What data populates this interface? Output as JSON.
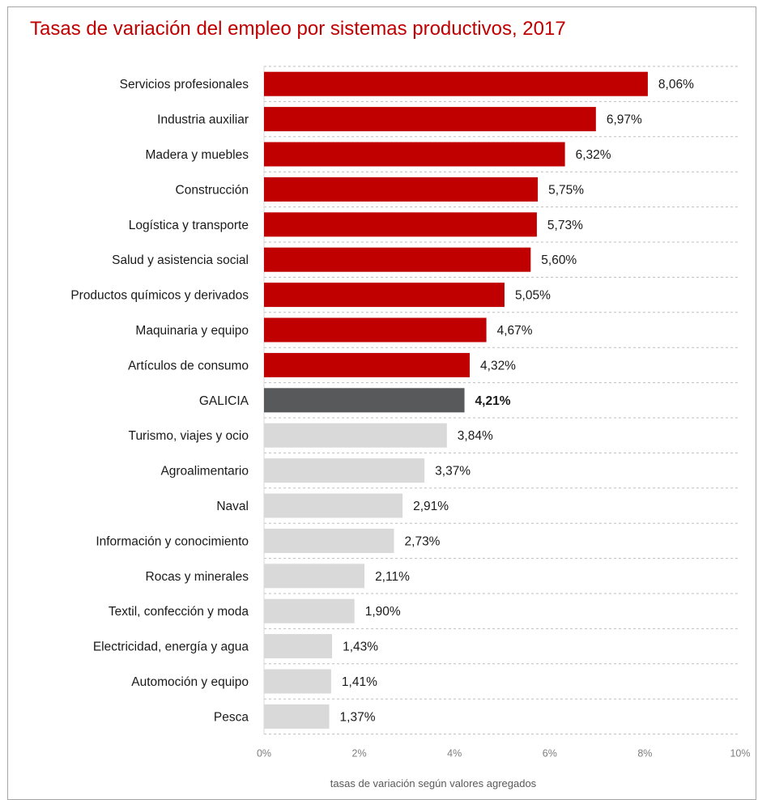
{
  "chart_data": {
    "type": "bar",
    "orientation": "horizontal",
    "title": "Tasas de variación del empleo por sistemas productivos, 2017",
    "xlabel": "tasas de variación según valores agregados",
    "ylabel": "",
    "xlim": [
      0,
      10
    ],
    "x_ticks": [
      "0%",
      "2%",
      "4%",
      "6%",
      "8%",
      "10%"
    ],
    "grid": "horizontal dashed",
    "categories": [
      "Servicios profesionales",
      "Industria auxiliar",
      "Madera y muebles",
      "Construcción",
      "Logística y transporte",
      "Salud y asistencia social",
      "Productos químicos y derivados",
      "Maquinaria y equipo",
      "Artículos de consumo",
      "GALICIA",
      "Turismo, viajes y ocio",
      "Agroalimentario",
      "Naval",
      "Información y conocimiento",
      "Rocas y minerales",
      "Textil, confección y moda",
      "Electricidad, energía y agua",
      "Automoción y equipo",
      "Pesca"
    ],
    "values": [
      8.06,
      6.97,
      6.32,
      5.75,
      5.73,
      5.6,
      5.05,
      4.67,
      4.32,
      4.21,
      3.84,
      3.37,
      2.91,
      2.73,
      2.11,
      1.9,
      1.43,
      1.41,
      1.37
    ],
    "value_labels": [
      "8,06%",
      "6,97%",
      "6,32%",
      "5,75%",
      "5,73%",
      "5,60%",
      "5,05%",
      "4,67%",
      "4,32%",
      "4,21%",
      "3,84%",
      "3,37%",
      "2,91%",
      "2,73%",
      "2,11%",
      "1,90%",
      "1,43%",
      "1,41%",
      "1,37%"
    ],
    "highlight_category": "GALICIA",
    "colors": {
      "above_average": "#c00000",
      "average": "#58595b",
      "below_average": "#d9d9d9",
      "title": "#c00000",
      "grid": "#bfbfbf"
    }
  }
}
